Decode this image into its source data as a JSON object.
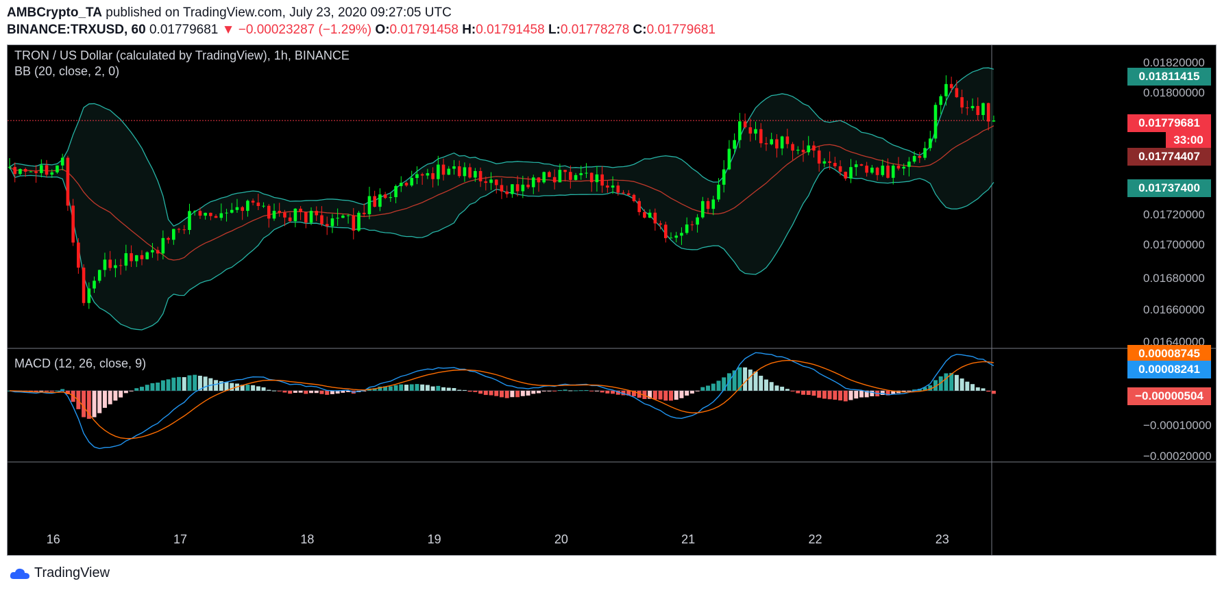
{
  "header": {
    "author": "AMBCrypto_TA",
    "published": "published on TradingView.com, July 23, 2020 09:27:05 UTC",
    "symbol": "BINANCE:TRXUSD, 60",
    "last": "0.01779681",
    "arrow": "▼",
    "change": "−0.00023287 (−1.29%)",
    "o_label": "O:",
    "o": "0.01791458",
    "h_label": "H:",
    "h": "0.01791458",
    "l_label": "L:",
    "l": "0.01778278",
    "c_label": "C:",
    "c": "0.01779681"
  },
  "legend": {
    "title": "TRON / US Dollar (calculated by TradingView), 1h, BINANCE",
    "bb": "BB (20, close, 2, 0)",
    "macd": "MACD (12, 26, close, 9)"
  },
  "tags": {
    "bb_upper": "0.01811415",
    "last_price": "0.01779681",
    "countdown": "33:00",
    "bb_basis": "0.01774407",
    "bb_lower": "0.01737400",
    "macd_signal": "0.00008745",
    "macd_line": "0.00008241",
    "histogram": "−0.00000504"
  },
  "colors": {
    "up": "#00ff26",
    "down": "#ff1c1c",
    "band": "#26b5a7",
    "basis": "#c0392b",
    "macd": "#2196f3",
    "signal": "#ff6d00",
    "hist_up_strong": "#26a69a",
    "hist_up_weak": "#b2dfdb",
    "hist_down_strong": "#ef5350",
    "hist_down_weak": "#ffcdd2"
  },
  "brand": "TradingView",
  "chart_data": {
    "type": "candlestick",
    "price_axis": {
      "ticks": [
        "0.01820000",
        "0.01800000",
        "0.01720000",
        "0.01700000",
        "0.01680000",
        "0.01660000",
        "0.01640000"
      ],
      "range": [
        0.0164,
        0.01826
      ]
    },
    "macd_axis": {
      "ticks": [
        "−0.00010000",
        "−0.00020000"
      ],
      "range": [
        -0.00022,
        0.00013
      ]
    },
    "x_ticks": [
      "16",
      "17",
      "18",
      "19",
      "20",
      "21",
      "22",
      "23"
    ],
    "day_start_index": [
      8,
      32,
      56,
      80,
      104,
      128,
      152,
      176
    ],
    "price_path": [
      [
        0,
        0.01752
      ],
      [
        6,
        0.0175
      ],
      [
        10,
        0.01755
      ],
      [
        12,
        0.01705
      ],
      [
        14,
        0.0167
      ],
      [
        17,
        0.01688
      ],
      [
        22,
        0.01695
      ],
      [
        26,
        0.01697
      ],
      [
        30,
        0.01705
      ],
      [
        34,
        0.0172
      ],
      [
        40,
        0.01725
      ],
      [
        46,
        0.01728
      ],
      [
        50,
        0.01722
      ],
      [
        54,
        0.01722
      ],
      [
        58,
        0.0172
      ],
      [
        62,
        0.01718
      ],
      [
        65,
        0.01716
      ],
      [
        68,
        0.0173
      ],
      [
        72,
        0.01736
      ],
      [
        76,
        0.0174
      ],
      [
        80,
        0.01748
      ],
      [
        84,
        0.0175
      ],
      [
        88,
        0.01745
      ],
      [
        92,
        0.0174
      ],
      [
        94,
        0.01738
      ],
      [
        98,
        0.0174
      ],
      [
        102,
        0.01745
      ],
      [
        106,
        0.01748
      ],
      [
        110,
        0.01746
      ],
      [
        114,
        0.01738
      ],
      [
        118,
        0.0173
      ],
      [
        122,
        0.01715
      ],
      [
        126,
        0.01708
      ],
      [
        130,
        0.01722
      ],
      [
        134,
        0.01738
      ],
      [
        136,
        0.01762
      ],
      [
        138,
        0.01775
      ],
      [
        142,
        0.0177
      ],
      [
        146,
        0.01765
      ],
      [
        150,
        0.01762
      ],
      [
        154,
        0.01755
      ],
      [
        158,
        0.01748
      ],
      [
        162,
        0.01748
      ],
      [
        166,
        0.01748
      ],
      [
        170,
        0.01752
      ],
      [
        173,
        0.01762
      ],
      [
        175,
        0.01785
      ],
      [
        177,
        0.018
      ],
      [
        180,
        0.0179
      ],
      [
        184,
        0.01786
      ],
      [
        186,
        0.0178
      ]
    ],
    "last_price": 0.01779681,
    "bb": {
      "length": 20,
      "mult": 2
    }
  }
}
